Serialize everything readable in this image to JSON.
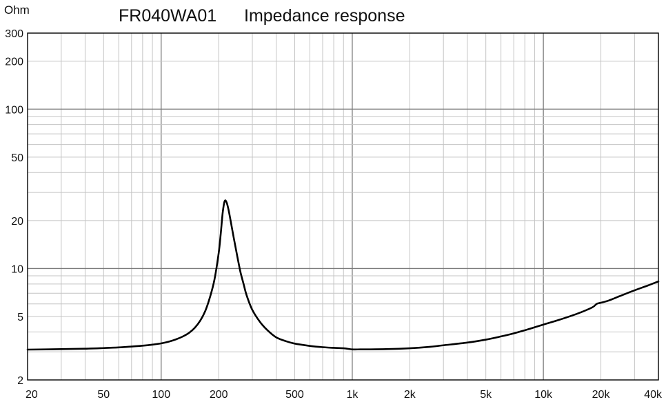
{
  "chart_data": {
    "type": "line",
    "title": "FR040WA01",
    "subtitle": "Impedance response",
    "ylabel": "Ohm",
    "xlabel": "",
    "x_scale": "log",
    "y_scale": "log",
    "xlim": [
      20,
      40000
    ],
    "ylim": [
      2,
      300
    ],
    "grid": true,
    "x_ticks": [
      {
        "value": 20,
        "label": "20"
      },
      {
        "value": 50,
        "label": "50"
      },
      {
        "value": 100,
        "label": "100"
      },
      {
        "value": 200,
        "label": "200"
      },
      {
        "value": 500,
        "label": "500"
      },
      {
        "value": 1000,
        "label": "1k"
      },
      {
        "value": 2000,
        "label": "2k"
      },
      {
        "value": 5000,
        "label": "5k"
      },
      {
        "value": 10000,
        "label": "10k"
      },
      {
        "value": 20000,
        "label": "20k"
      },
      {
        "value": 40000,
        "label": "40k"
      }
    ],
    "y_ticks": [
      {
        "value": 2,
        "label": "2"
      },
      {
        "value": 5,
        "label": "5"
      },
      {
        "value": 10,
        "label": "10"
      },
      {
        "value": 20,
        "label": "20"
      },
      {
        "value": 50,
        "label": "50"
      },
      {
        "value": 100,
        "label": "100"
      },
      {
        "value": 200,
        "label": "200"
      },
      {
        "value": 300,
        "label": "300"
      }
    ],
    "series": [
      {
        "color": "#000000",
        "x": [
          20,
          30,
          40,
          50,
          60,
          70,
          80,
          90,
          100,
          110,
          120,
          130,
          140,
          150,
          160,
          170,
          180,
          190,
          200,
          205,
          210,
          215,
          220,
          225,
          230,
          240,
          250,
          260,
          270,
          280,
          300,
          330,
          360,
          400,
          450,
          500,
          600,
          700,
          800,
          900,
          1000,
          1100,
          1200,
          1500,
          2000,
          2500,
          3000,
          4000,
          5000,
          6000,
          7000,
          8000,
          9000,
          10000,
          12000,
          15000,
          18000,
          19000,
          20000,
          22000,
          25000,
          30000,
          35000,
          40000
        ],
        "y": [
          3.1,
          3.12,
          3.14,
          3.17,
          3.2,
          3.24,
          3.28,
          3.33,
          3.39,
          3.48,
          3.6,
          3.75,
          3.95,
          4.25,
          4.7,
          5.4,
          6.6,
          8.5,
          12.5,
          16.5,
          22.5,
          26.5,
          26.0,
          23.5,
          20.5,
          15.5,
          12.0,
          9.5,
          8.0,
          6.8,
          5.5,
          4.6,
          4.1,
          3.7,
          3.5,
          3.38,
          3.27,
          3.21,
          3.18,
          3.16,
          3.11,
          3.11,
          3.11,
          3.12,
          3.16,
          3.22,
          3.3,
          3.43,
          3.58,
          3.75,
          3.92,
          4.1,
          4.28,
          4.45,
          4.75,
          5.2,
          5.7,
          6.0,
          6.1,
          6.3,
          6.7,
          7.3,
          7.8,
          8.3
        ]
      }
    ]
  }
}
